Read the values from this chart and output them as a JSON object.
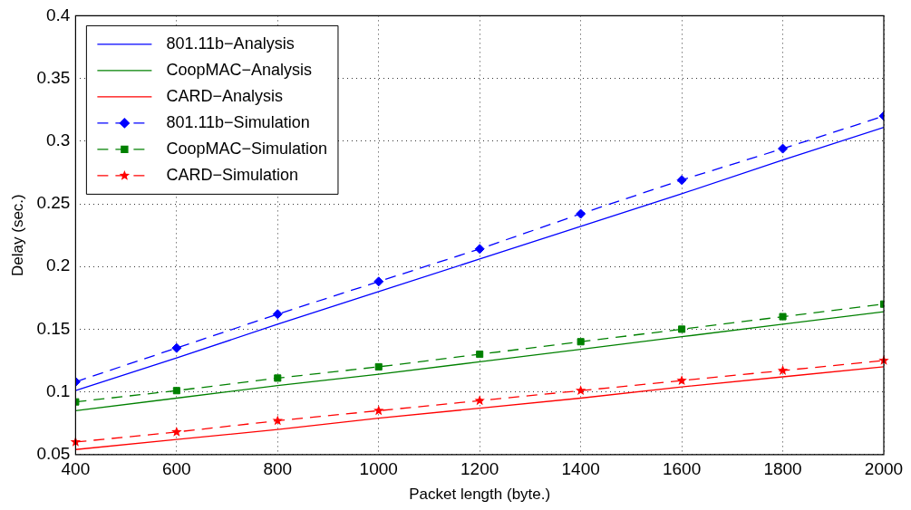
{
  "chart_data": {
    "type": "line",
    "xlabel": "Packet length (byte.)",
    "ylabel": "Delay (sec.)",
    "x": [
      400,
      600,
      800,
      1000,
      1200,
      1400,
      1600,
      1800,
      2000
    ],
    "xlim": [
      400,
      2000
    ],
    "xticks": [
      400,
      600,
      800,
      1000,
      1200,
      1400,
      1600,
      1800,
      2000
    ],
    "ylim": [
      0.05,
      0.4
    ],
    "yticks": [
      0.05,
      0.1,
      0.15,
      0.2,
      0.25,
      0.3,
      0.35,
      0.4
    ],
    "grid": true,
    "legend": "top left",
    "series": [
      {
        "name": "801.11b−Analysis",
        "color": "#0000ff",
        "marker": "none",
        "line_style": "solid",
        "values": [
          0.101,
          0.127,
          0.154,
          0.18,
          0.206,
          0.232,
          0.258,
          0.285,
          0.311
        ]
      },
      {
        "name": "CoopMAC−Analysis",
        "color": "#008000",
        "marker": "none",
        "line_style": "solid",
        "values": [
          0.085,
          0.095,
          0.105,
          0.114,
          0.124,
          0.134,
          0.144,
          0.154,
          0.164
        ]
      },
      {
        "name": "CARD−Analysis",
        "color": "#ff0000",
        "marker": "none",
        "line_style": "solid",
        "values": [
          0.054,
          0.062,
          0.07,
          0.079,
          0.087,
          0.095,
          0.104,
          0.112,
          0.12
        ]
      },
      {
        "name": "801.11b−Simulation",
        "color": "#0000ff",
        "marker": "diamond",
        "line_style": "dashed",
        "values": [
          0.108,
          0.135,
          0.162,
          0.188,
          0.214,
          0.242,
          0.269,
          0.294,
          0.32
        ]
      },
      {
        "name": "CoopMAC−Simulation",
        "color": "#008000",
        "marker": "square",
        "line_style": "dashed",
        "values": [
          0.092,
          0.101,
          0.111,
          0.12,
          0.13,
          0.14,
          0.15,
          0.16,
          0.17
        ]
      },
      {
        "name": "CARD−Simulation",
        "color": "#ff0000",
        "marker": "star",
        "line_style": "dashed",
        "values": [
          0.06,
          0.068,
          0.077,
          0.085,
          0.093,
          0.101,
          0.109,
          0.117,
          0.125
        ]
      }
    ]
  }
}
